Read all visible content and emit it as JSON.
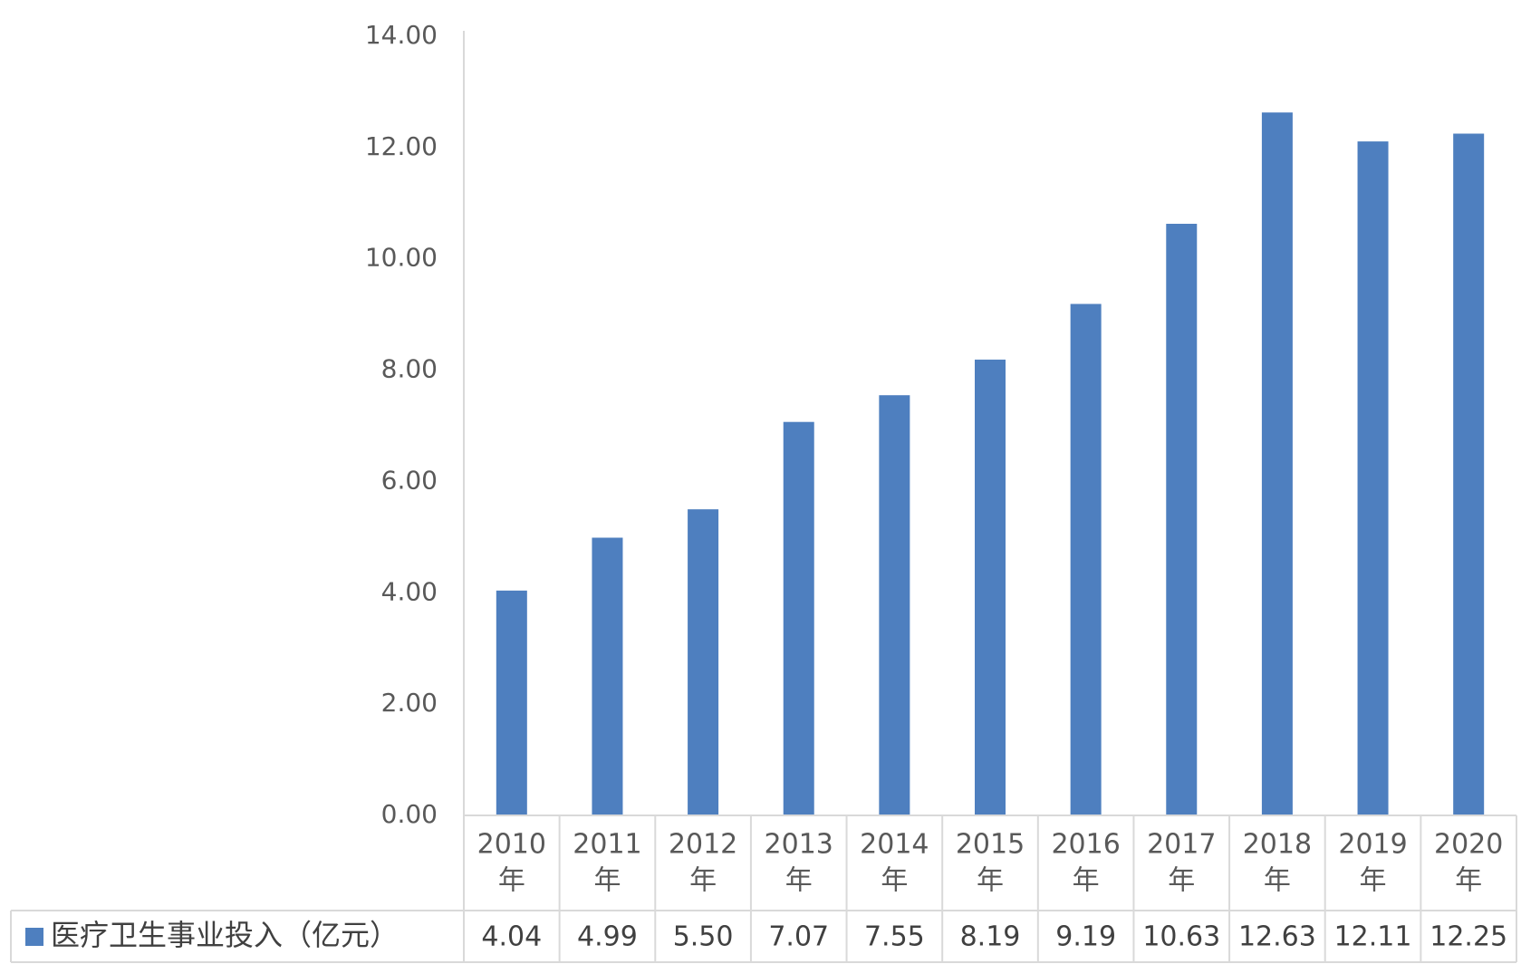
{
  "chart_data": {
    "type": "bar",
    "categories": [
      "2010年",
      "2011年",
      "2012年",
      "2013年",
      "2014年",
      "2015年",
      "2016年",
      "2017年",
      "2018年",
      "2019年",
      "2020年"
    ],
    "category_lines": [
      [
        "2010",
        "年"
      ],
      [
        "2011",
        "年"
      ],
      [
        "2012",
        "年"
      ],
      [
        "2013",
        "年"
      ],
      [
        "2014",
        "年"
      ],
      [
        "2015",
        "年"
      ],
      [
        "2016",
        "年"
      ],
      [
        "2017",
        "年"
      ],
      [
        "2018",
        "年"
      ],
      [
        "2019",
        "年"
      ],
      [
        "2020",
        "年"
      ]
    ],
    "series": [
      {
        "name": "医疗卫生事业投入（亿元）",
        "values": [
          4.04,
          4.99,
          5.5,
          7.07,
          7.55,
          8.19,
          9.19,
          10.63,
          12.63,
          12.11,
          12.25
        ],
        "value_labels": [
          "4.04",
          "4.99",
          "5.50",
          "7.07",
          "7.55",
          "8.19",
          "9.19",
          "10.63",
          "12.63",
          "12.11",
          "12.25"
        ],
        "color": "#4e7fbf"
      }
    ],
    "ylim": [
      0,
      14
    ],
    "yticks": [
      "0.00",
      "2.00",
      "4.00",
      "6.00",
      "8.00",
      "10.00",
      "12.00",
      "14.00"
    ],
    "title": "",
    "xlabel": "",
    "ylabel": "",
    "grid": false,
    "legend": "data-table",
    "colors": {
      "bar": "#4e7fbf",
      "axis": "#d9d9d9",
      "text": "#595959"
    }
  }
}
